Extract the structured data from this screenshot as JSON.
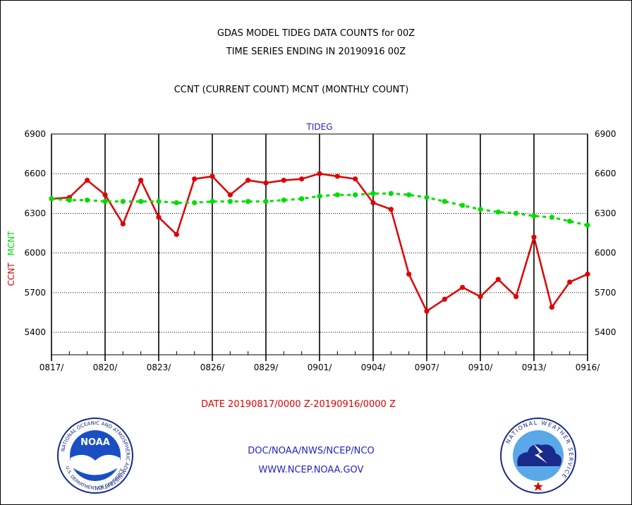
{
  "header": {
    "title_line1": "GDAS MODEL TIDEG DATA COUNTS for 00Z",
    "title_line2": "TIME SERIES ENDING IN 20190916 00Z",
    "subtitle": "CCNT (CURRENT COUNT) MCNT (MONTHLY COUNT)"
  },
  "chart_data": {
    "type": "line",
    "title": "TIDEG",
    "ylabel_series1": "CCNT",
    "ylabel_series2": "MCNT",
    "xlabel": "DATE 20190817/0000 Z-20190916/0000 Z",
    "ylim": [
      5230,
      6900
    ],
    "yticks": [
      5400,
      5700,
      6000,
      6300,
      6600,
      6900
    ],
    "x_tick_labels": [
      "0817/",
      "0820/",
      "0823/",
      "0826/",
      "0829/",
      "0901/",
      "0904/",
      "0907/",
      "0910/",
      "0913/",
      "0916/"
    ],
    "grid": true,
    "colors": {
      "CCNT": "#e00000",
      "MCNT": "#00dd00"
    },
    "series": [
      {
        "name": "CCNT",
        "x": [
          "0817",
          "0818",
          "0819",
          "0820",
          "0821",
          "0822",
          "0823",
          "0824",
          "0825",
          "0826",
          "0827",
          "0828",
          "0829",
          "0830",
          "0831",
          "0901",
          "0902",
          "0903",
          "0904",
          "0905",
          "0906",
          "0907",
          "0908",
          "0909",
          "0910",
          "0911",
          "0912",
          "0913",
          "0914",
          "0915",
          "0916"
        ],
        "values": [
          6410,
          6420,
          6550,
          6440,
          6220,
          6550,
          6270,
          6140,
          6560,
          6580,
          6440,
          6550,
          6530,
          6550,
          6560,
          6600,
          6580,
          6560,
          6380,
          6330,
          5840,
          5560,
          5650,
          5740,
          5670,
          5800,
          5670,
          6120,
          5590,
          5780,
          5840
        ]
      },
      {
        "name": "MCNT",
        "x": [
          "0817",
          "0818",
          "0819",
          "0820",
          "0821",
          "0822",
          "0823",
          "0824",
          "0825",
          "0826",
          "0827",
          "0828",
          "0829",
          "0830",
          "0831",
          "0901",
          "0902",
          "0903",
          "0904",
          "0905",
          "0906",
          "0907",
          "0908",
          "0909",
          "0910",
          "0911",
          "0912",
          "0913",
          "0914",
          "0915",
          "0916"
        ],
        "values": [
          6410,
          6400,
          6400,
          6390,
          6390,
          6390,
          6390,
          6380,
          6380,
          6390,
          6390,
          6390,
          6390,
          6400,
          6410,
          6430,
          6440,
          6440,
          6450,
          6450,
          6440,
          6420,
          6390,
          6360,
          6330,
          6310,
          6300,
          6280,
          6270,
          6240,
          6210
        ]
      }
    ]
  },
  "footer": {
    "line1": "DOC/NOAA/NWS/NCEP/NCO",
    "line2": "WWW.NCEP.NOAA.GOV",
    "noaa_logo_text": "NOAA",
    "noaa_ring_text": "NATIONAL OCEANIC AND ATMOSPHERIC ADMINISTRATION",
    "noaa_ring_text_bottom": "U.S. DEPARTMENT OF COMMERCE",
    "nws_ring_text": "NATIONAL WEATHER SERVICE"
  }
}
